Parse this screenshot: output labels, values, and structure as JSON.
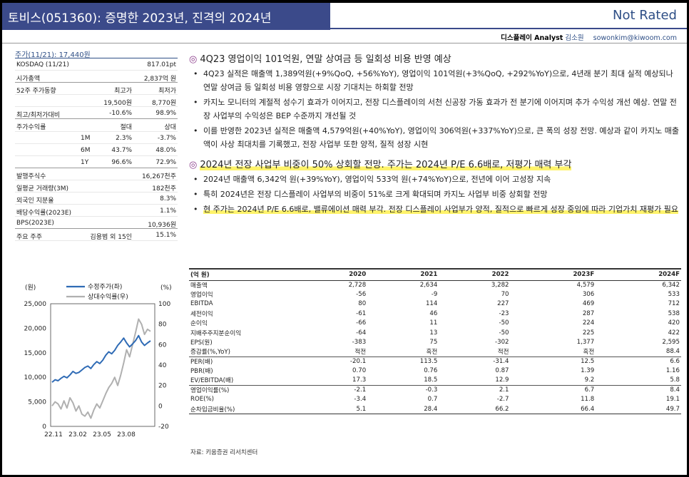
{
  "header": {
    "title": "토비스(051360): 증명한 2023년, 진격의 2024년",
    "rating": "Not Rated",
    "sector": "디스플레이 Analyst",
    "analyst": "김소원",
    "email": "sowonkim@kiwoom.com"
  },
  "colors": {
    "title_bg": "#3b4a8a",
    "accent": "#2f4f86",
    "highlight": "#fff36a",
    "series_price": "#2f6bb5",
    "series_rel": "#b0b0b0"
  },
  "stock": {
    "price_head": "주가(11/21): 17,440원",
    "rows": [
      {
        "k": "KOSDAQ (11/21)",
        "m": "",
        "v": "817.01pt"
      },
      {
        "k": "시가총액",
        "m": "",
        "v": "2,837억 원"
      },
      {
        "k": "52주 주가동향",
        "m": "최고가",
        "v": "최저가"
      },
      {
        "k": "",
        "m": "19,500원",
        "v": "8,770원"
      },
      {
        "k": "최고/최저가대비",
        "m": "-10.6%",
        "v": "98.9%"
      },
      {
        "k": "주가수익률",
        "m": "절대",
        "v": "상대"
      },
      {
        "k": "1M",
        "m": "2.3%",
        "v": "-3.7%"
      },
      {
        "k": "6M",
        "m": "43.7%",
        "v": "48.0%"
      },
      {
        "k": "1Y",
        "m": "96.6%",
        "v": "72.9%"
      },
      {
        "k": "발행주식수",
        "m": "",
        "v": "16,267천주"
      },
      {
        "k": "일평균 거래량(3M)",
        "m": "",
        "v": "182천주"
      },
      {
        "k": "외국인 지분율",
        "m": "",
        "v": "8.3%"
      },
      {
        "k": "배당수익률(2023E)",
        "m": "",
        "v": "1.1%"
      },
      {
        "k": "BPS(2023E)",
        "m": "",
        "v": "10,936원"
      },
      {
        "k": "주요 주주",
        "m": "김용범 외 15인",
        "v": "15.1%"
      }
    ]
  },
  "chart_data": {
    "type": "line",
    "ylabel_left": "(원)",
    "ylabel_right": "(%)",
    "ylim_left": [
      0,
      25000
    ],
    "ylim_right": [
      -20,
      100
    ],
    "yticks_left": [
      "25,000",
      "20,000",
      "15,000",
      "10,000",
      "5,000",
      "0"
    ],
    "yticks_right": [
      "100",
      "80",
      "60",
      "40",
      "20",
      "0",
      "-20"
    ],
    "xticks": [
      "22.11",
      "23.02",
      "23.05",
      "23.08"
    ],
    "series": [
      {
        "name": "수정주가(좌)",
        "axis": "left",
        "values": [
          9000,
          9500,
          9300,
          9800,
          10200,
          9900,
          10500,
          11200,
          10800,
          11000,
          11500,
          12000,
          12300,
          11800,
          12600,
          13200,
          12800,
          13500,
          14500,
          15200,
          14800,
          15500,
          16500,
          17200,
          18000,
          17000,
          16200,
          16800,
          17500,
          18500,
          17200,
          16500,
          17000,
          17440
        ]
      },
      {
        "name": "상대수익률(우)",
        "axis": "right",
        "values": [
          0,
          4,
          2,
          -3,
          5,
          -2,
          8,
          3,
          -5,
          0,
          -8,
          -10,
          -6,
          -12,
          -4,
          2,
          -2,
          5,
          12,
          18,
          22,
          28,
          20,
          30,
          42,
          55,
          48,
          60,
          72,
          85,
          80,
          70,
          75,
          73
        ]
      }
    ]
  },
  "sections": [
    {
      "title": "4Q23 영업이익 101억원, 연말 상여금 등 일회성 비용 반영 예상",
      "bullets": [
        "4Q23 실적은 매출액 1,389억원(+9%QoQ, +56%YoY), 영업이익 101억원(+3%QoQ, +292%YoY)으로, 4년래 분기 최대 실적 예상되나 연말 상여금 등 일회성 비용 영향으로 시장 기대치는 하회할 전망",
        "카지노 모니터의 계절적 성수기 효과가 이어지고, 전장 디스플레이의 서천 신공장 가동 효과가 전 분기에 이어지며 추가 수익성 개선 예상. 연말 전장 사업부의 수익성은 BEP 수준까지 개선될 것",
        "이를 반영한 2023년 실적은 매출액 4,579억원(+40%YoY), 영업이익 306억원(+337%YoY)으로, 큰 폭의 성장 전망. 예상과 같이 카지노 매출액이 사상 최대치를 기록했고, 전장 사업부 또한 양적, 질적 성장 시현"
      ]
    },
    {
      "title": "2024년 전장 사업부 비중이 50% 상회할 전망. 주가는 2024년 P/E 6.6배로, 저평가 매력 부각",
      "bullets": [
        "2024년 매출액 6,342억 원(+39%YoY), 영업이익 533억 원(+74%YoY)으로, 전년에 이어 고성장 지속",
        "특히 2024년은 전장 디스플레이 사업부의 비중이 51%로 크게 확대되며 카지노 사업부 비중 상회할 전망",
        "현 주가는 2024년 P/E 6.6배로, 밸류에이션 매력 부각. 전장 디스플레이 사업부가 양적, 질적으로 빠르게 성장 중임에 따라 기업가치 재평가 필요"
      ]
    }
  ],
  "table": {
    "headers": [
      "(억 원)",
      "2020",
      "2021",
      "2022",
      "2023F",
      "2024F"
    ],
    "rows": [
      [
        "매출액",
        "2,728",
        "2,634",
        "3,282",
        "4,579",
        "6,342"
      ],
      [
        "영업이익",
        "-56",
        "-9",
        "70",
        "306",
        "533"
      ],
      [
        "EBITDA",
        "80",
        "114",
        "227",
        "469",
        "712"
      ],
      [
        "세전이익",
        "-61",
        "46",
        "-23",
        "287",
        "538"
      ],
      [
        "순이익",
        "-66",
        "11",
        "-50",
        "224",
        "420"
      ],
      [
        "지배주주지분순이익",
        "-64",
        "13",
        "-50",
        "225",
        "422"
      ],
      [
        "EPS(원)",
        "-383",
        "75",
        "-302",
        "1,377",
        "2,595"
      ],
      [
        " 증감률(%,YoY)",
        "적전",
        "흑전",
        "적전",
        "흑전",
        "88.4"
      ],
      [
        "PER(배)",
        "-20.1",
        "113.5",
        "-31.4",
        "12.5",
        "6.6"
      ],
      [
        "PBR(배)",
        "0.70",
        "0.76",
        "0.87",
        "1.39",
        "1.16"
      ],
      [
        "EV/EBITDA(배)",
        "17.3",
        "18.5",
        "12.9",
        "9.2",
        "5.8"
      ],
      [
        "영업이익률(%)",
        "-2.1",
        "-0.3",
        "2.1",
        "6.7",
        "8.4"
      ],
      [
        "ROE(%)",
        "-3.4",
        "0.7",
        "-2.7",
        "11.8",
        "19.1"
      ],
      [
        "순차입금비율(%)",
        "5.1",
        "28.4",
        "66.2",
        "66.4",
        "49.7"
      ]
    ],
    "source": "자료: 키움증권 리서치센터"
  }
}
